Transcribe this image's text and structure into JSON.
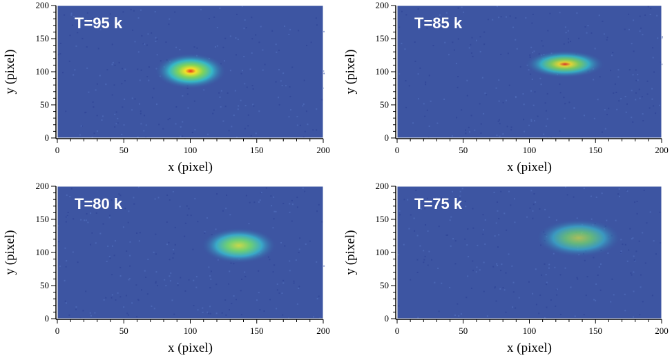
{
  "chart_data": [
    {
      "type": "heatmap",
      "title": "T=95 k",
      "xlabel": "x (pixel)",
      "ylabel": "y (pixel)",
      "xlim": [
        0,
        200
      ],
      "ylim": [
        0,
        200
      ],
      "xticks": [
        0,
        50,
        100,
        150,
        200
      ],
      "yticks": [
        0,
        50,
        100,
        150,
        200
      ]
    },
    {
      "type": "heatmap",
      "title": "T=85 k",
      "xlabel": "x (pixel)",
      "ylabel": "y (pixel)",
      "xlim": [
        0,
        200
      ],
      "ylim": [
        0,
        200
      ],
      "xticks": [
        0,
        50,
        100,
        150,
        200
      ],
      "yticks": [
        0,
        50,
        100,
        150,
        200
      ]
    },
    {
      "type": "heatmap",
      "title": "T=80 k",
      "xlabel": "x (pixel)",
      "ylabel": "y (pixel)",
      "xlim": [
        0,
        200
      ],
      "ylim": [
        0,
        200
      ],
      "xticks": [
        0,
        50,
        100,
        150,
        200
      ],
      "yticks": [
        0,
        50,
        100,
        150,
        200
      ]
    },
    {
      "type": "heatmap",
      "title": "T=75 k",
      "xlabel": "x (pixel)",
      "ylabel": "y (pixel)",
      "xlim": [
        0,
        200
      ],
      "ylim": [
        0,
        200
      ],
      "xticks": [
        0,
        50,
        100,
        150,
        200
      ],
      "yticks": [
        0,
        50,
        100,
        150,
        200
      ]
    }
  ]
}
